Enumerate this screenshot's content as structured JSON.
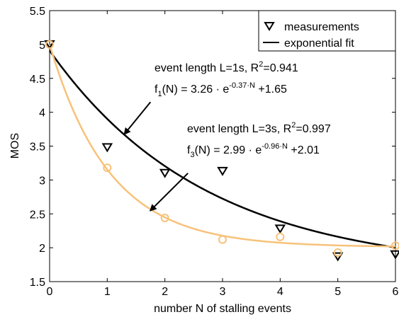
{
  "chart_data": {
    "type": "line",
    "title": "",
    "xlabel": "number N of stalling events",
    "ylabel": "MOS",
    "xlim": [
      0,
      6
    ],
    "ylim": [
      1.5,
      5.5
    ],
    "xticks": [
      0,
      1,
      2,
      3,
      4,
      5,
      6
    ],
    "yticks": [
      1.5,
      2,
      2.5,
      3,
      3.5,
      4,
      4.5,
      5,
      5.5
    ],
    "xtick_labels": [
      "0",
      "1",
      "2",
      "3",
      "4",
      "5",
      "6"
    ],
    "ytick_labels": [
      "1.5",
      "2",
      "2.5",
      "3",
      "3.5",
      "4",
      "4.5",
      "5",
      "5.5"
    ],
    "grid": false,
    "legend_position": "top-right",
    "legend": [
      {
        "label": "measurements",
        "marker": "triangle-down",
        "color": "#000000"
      },
      {
        "label": "exponential fit",
        "marker": "line",
        "color": "#000000"
      }
    ],
    "series": [
      {
        "kind": "measurements",
        "marker": "triangle-down",
        "color": "#000000",
        "x": [
          0,
          1,
          2,
          3,
          4,
          5,
          6
        ],
        "y": [
          5.0,
          3.48,
          3.1,
          3.13,
          2.28,
          1.87,
          1.9
        ]
      },
      {
        "kind": "measurements",
        "marker": "circle",
        "color": "#f7c27a",
        "x": [
          0,
          1,
          2,
          3,
          4,
          5,
          6
        ],
        "y": [
          5.0,
          3.18,
          2.44,
          2.12,
          2.16,
          1.93,
          2.03
        ]
      },
      {
        "kind": "fit",
        "color": "#000000",
        "a": 3.26,
        "b": 0.37,
        "c": 1.65
      },
      {
        "kind": "fit",
        "color": "#f7c27a",
        "a": 2.99,
        "b": 0.96,
        "c": 2.01
      }
    ],
    "annotations": [
      {
        "line1": {
          "prefix": "event length L=1s, R",
          "sup": "2",
          "suffix": "=0.941"
        },
        "line2": {
          "f": "f",
          "sub": "1",
          "mid": "(N) = 3.26 · e",
          "sup": "-0.37·N",
          "suffix": " +1.65"
        },
        "arrow_from": [
          1.75,
          4.15
        ],
        "arrow_to": [
          1.3,
          3.68
        ]
      },
      {
        "line1": {
          "prefix": "event length L=3s, R",
          "sup": "2",
          "suffix": "=0.997"
        },
        "line2": {
          "f": "f",
          "sub": "3",
          "mid": "(N) = 2.99 · e",
          "sup": "-0.96·N",
          "suffix": " +2.01"
        },
        "arrow_from": [
          2.4,
          3.1
        ],
        "arrow_to": [
          1.75,
          2.55
        ]
      }
    ]
  }
}
